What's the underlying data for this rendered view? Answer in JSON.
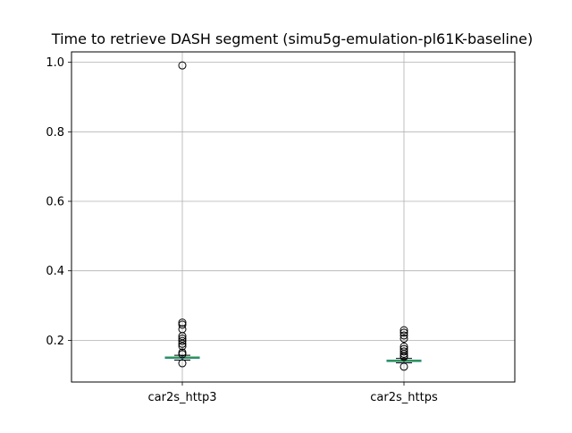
{
  "chart_data": {
    "type": "box",
    "title": "Time to retrieve DASH segment (simu5g-emulation-pl61K-baseline)",
    "xlabel": "",
    "ylabel": "",
    "categories": [
      "car2s_http3",
      "car2s_https"
    ],
    "ylim": [
      0.08,
      1.03
    ],
    "yticks": [
      0.2,
      0.4,
      0.6,
      0.8,
      1.0
    ],
    "ytick_labels": [
      "0.2",
      "0.4",
      "0.6",
      "0.8",
      "1.0"
    ],
    "grid": true,
    "boxes": [
      {
        "category": "car2s_http3",
        "whisker_low": 0.143,
        "q1": 0.148,
        "median": 0.15,
        "q3": 0.152,
        "whisker_high": 0.157,
        "outliers": [
          0.991,
          0.251,
          0.245,
          0.232,
          0.212,
          0.205,
          0.198,
          0.19,
          0.183,
          0.165,
          0.16,
          0.134
        ]
      },
      {
        "category": "car2s_https",
        "whisker_low": 0.135,
        "q1": 0.139,
        "median": 0.141,
        "q3": 0.143,
        "whisker_high": 0.148,
        "outliers": [
          0.229,
          0.222,
          0.214,
          0.205,
          0.182,
          0.175,
          0.168,
          0.161,
          0.155,
          0.152,
          0.124
        ]
      }
    ],
    "colors": {
      "box": "#1f77b4",
      "whisker": "#000000",
      "median": "#2ca02c",
      "grid": "#b0b0b0",
      "outlier_edge": "#000000"
    }
  }
}
